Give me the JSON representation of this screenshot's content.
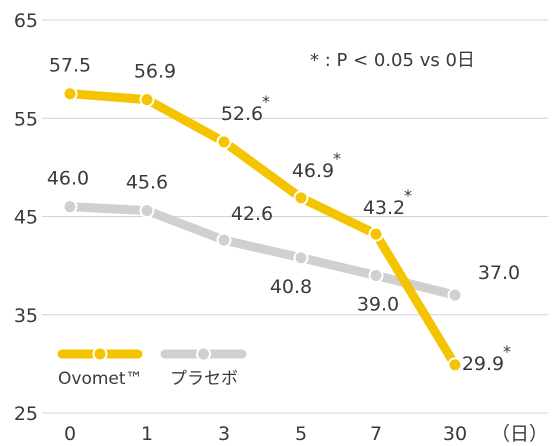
{
  "chart_data": {
    "type": "line",
    "x": [
      "0",
      "1",
      "3",
      "5",
      "7",
      "30"
    ],
    "x_unit": "（日）",
    "ylim": [
      25,
      65
    ],
    "yticks": [
      25,
      35,
      45,
      55,
      65
    ],
    "grid": "horizontal",
    "legend_position": "bottom-left",
    "annotation": "* : P < 0.05 vs 0日",
    "series": [
      {
        "name": "Ovomet™",
        "color": "#f5c400",
        "values": [
          57.5,
          56.9,
          52.6,
          46.9,
          43.2,
          29.9
        ],
        "labels": [
          "57.5",
          "56.9",
          "52.6",
          "46.9",
          "43.2",
          "29.9"
        ],
        "significant": [
          false,
          false,
          true,
          true,
          true,
          true
        ]
      },
      {
        "name": "プラセボ",
        "color": "#d0d0d0",
        "values": [
          46.0,
          45.6,
          42.6,
          40.8,
          39.0,
          37.0
        ],
        "labels": [
          "46.0",
          "45.6",
          "42.6",
          "40.8",
          "39.0",
          "37.0"
        ],
        "significant": [
          false,
          false,
          false,
          false,
          false,
          false
        ]
      }
    ],
    "star_symbol": "*"
  }
}
